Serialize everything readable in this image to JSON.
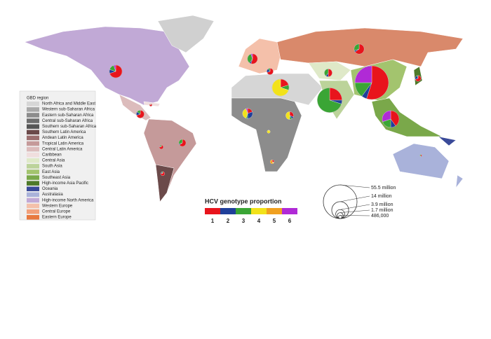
{
  "legend": {
    "title": "GBD region",
    "items": [
      {
        "label": "North Africa and Middle East",
        "color": "#d6d6d6"
      },
      {
        "label": "Western sub-Saharan Africa",
        "color": "#a9a9a9"
      },
      {
        "label": "Eastern sub-Saharan Africa",
        "color": "#8c8c8c"
      },
      {
        "label": "Central sub-Saharan Africa",
        "color": "#6e6e6e"
      },
      {
        "label": "Southern sub-Saharan Africa",
        "color": "#555555"
      },
      {
        "label": "Southern Latin America",
        "color": "#6b4a4a"
      },
      {
        "label": "Andean Latin America",
        "color": "#9c6f6f"
      },
      {
        "label": "Tropical Latin America",
        "color": "#c59a9a"
      },
      {
        "label": "Central Latin America",
        "color": "#dcbcbc"
      },
      {
        "label": "Caribbean",
        "color": "#f0dede"
      },
      {
        "label": "Central Asia",
        "color": "#dfe9c8"
      },
      {
        "label": "South Asia",
        "color": "#bcd39a"
      },
      {
        "label": "East Asia",
        "color": "#a3c46e"
      },
      {
        "label": "Southeast Asia",
        "color": "#7aa84a"
      },
      {
        "label": "High-income Asia Pacific",
        "color": "#4e7a2a"
      },
      {
        "label": "Oceania",
        "color": "#3a4a99"
      },
      {
        "label": "Australasia",
        "color": "#a9b2da"
      },
      {
        "label": "High-income North America",
        "color": "#c1a9d6"
      },
      {
        "label": "Western Europe",
        "color": "#f4c0aa"
      },
      {
        "label": "Central Europe",
        "color": "#f2a07a"
      },
      {
        "label": "Eastern Europe",
        "color": "#e8793f"
      }
    ]
  },
  "genotype_legend": {
    "title": "HCV genotype proportion",
    "items": [
      {
        "label": "1",
        "color": "#e8141c"
      },
      {
        "label": "2",
        "color": "#1f3f9a"
      },
      {
        "label": "3",
        "color": "#3aa535"
      },
      {
        "label": "4",
        "color": "#f2e21a"
      },
      {
        "label": "5",
        "color": "#f0a020"
      },
      {
        "label": "6",
        "color": "#b02ad6"
      }
    ]
  },
  "size_legend": [
    {
      "value": 55.5,
      "label": "55.5 million"
    },
    {
      "value": 14,
      "label": "14 million"
    },
    {
      "value": 3.9,
      "label": "3.9 million"
    },
    {
      "value": 1.7,
      "label": "1.7 million"
    },
    {
      "value": 0.486,
      "label": "486,000"
    }
  ],
  "pies": [
    {
      "size": 8,
      "values": [
        70,
        10,
        15,
        0,
        0,
        5
      ]
    },
    {
      "size": 0.3,
      "values": [
        90,
        5,
        5,
        0,
        0,
        0
      ]
    },
    {
      "size": 3,
      "values": [
        70,
        15,
        15,
        0,
        0,
        0
      ]
    },
    {
      "size": 0.8,
      "values": [
        80,
        5,
        15,
        0,
        0,
        0
      ]
    },
    {
      "size": 2.5,
      "values": [
        65,
        5,
        30,
        0,
        0,
        0
      ]
    },
    {
      "size": 0.8,
      "values": [
        80,
        10,
        10,
        0,
        0,
        0
      ]
    },
    {
      "size": 5,
      "values": [
        55,
        5,
        35,
        0,
        0,
        5
      ]
    },
    {
      "size": 2,
      "values": [
        70,
        20,
        10,
        0,
        0,
        0
      ]
    },
    {
      "size": 5,
      "values": [
        65,
        5,
        30,
        0,
        0,
        0
      ]
    },
    {
      "size": 14,
      "values": [
        20,
        0,
        10,
        70,
        0,
        0
      ]
    },
    {
      "size": 5,
      "values": [
        20,
        30,
        5,
        40,
        0,
        5
      ]
    },
    {
      "size": 0.5,
      "values": [
        5,
        0,
        0,
        95,
        0,
        0
      ]
    },
    {
      "size": 3,
      "values": [
        30,
        10,
        10,
        50,
        0,
        0
      ]
    },
    {
      "size": 0.8,
      "values": [
        30,
        0,
        5,
        5,
        60,
        0
      ]
    },
    {
      "size": 3,
      "values": [
        50,
        10,
        40,
        0,
        0,
        0
      ]
    },
    {
      "size": 30,
      "values": [
        25,
        5,
        70,
        0,
        0,
        0
      ]
    },
    {
      "size": 55.5,
      "values": [
        55,
        5,
        15,
        0,
        0,
        25
      ]
    },
    {
      "size": 14,
      "values": [
        40,
        10,
        20,
        0,
        0,
        30
      ]
    },
    {
      "size": 1.7,
      "values": [
        70,
        25,
        5,
        0,
        0,
        0
      ]
    },
    {
      "size": 0.2,
      "values": [
        55,
        5,
        40,
        0,
        0,
        0
      ]
    }
  ]
}
